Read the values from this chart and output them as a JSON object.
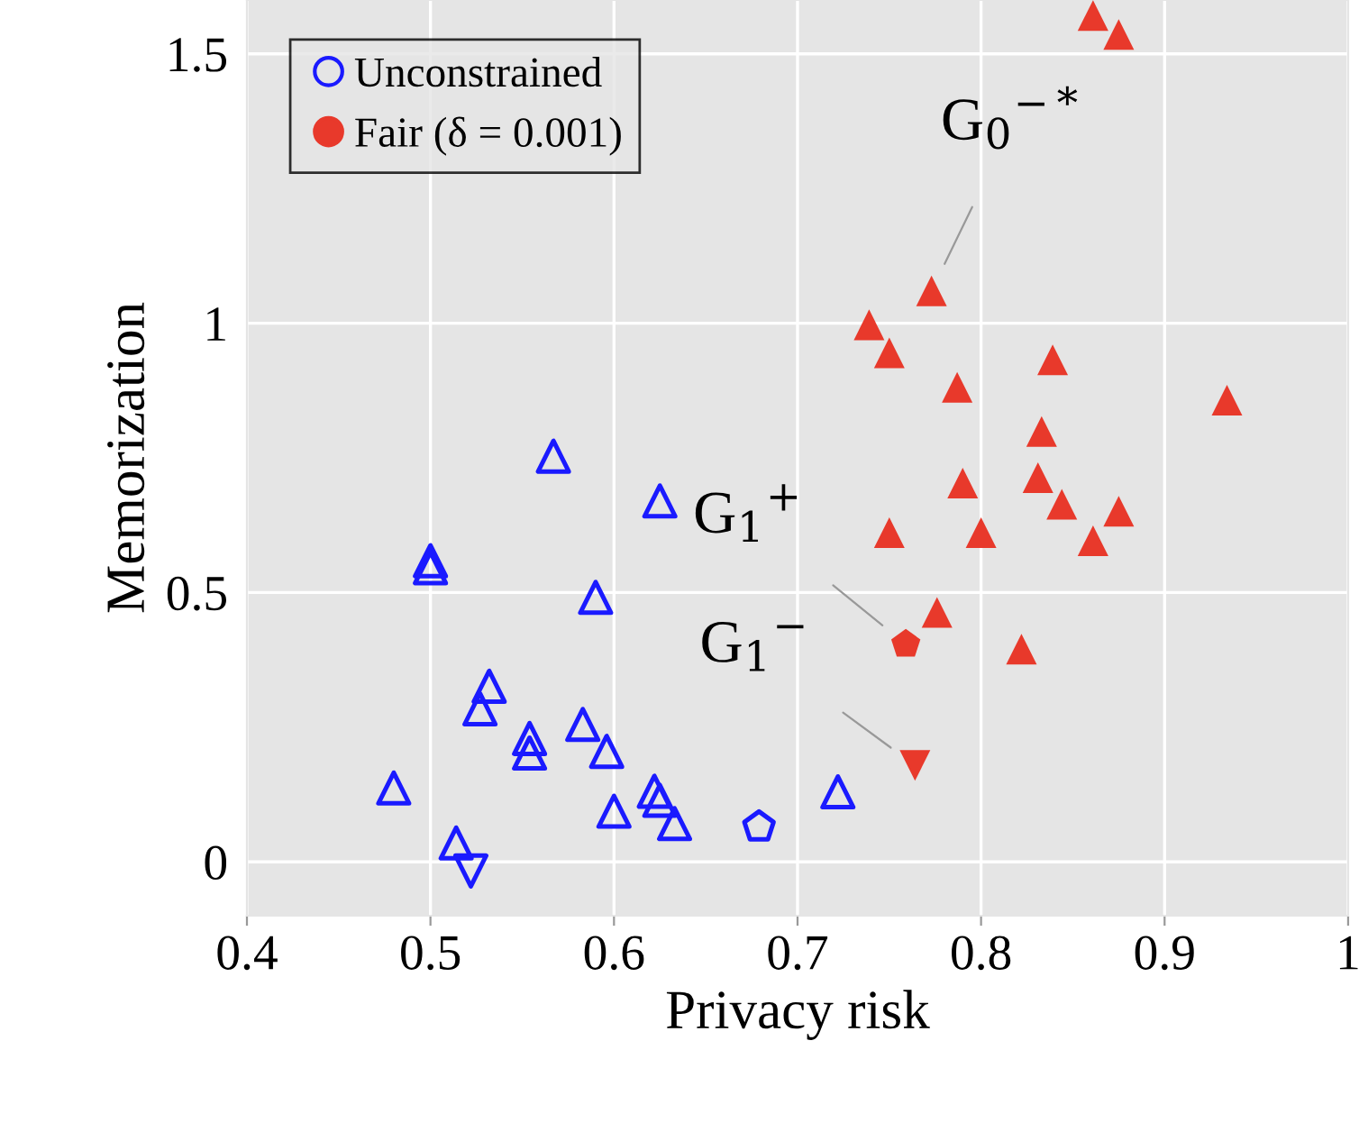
{
  "chart_data": {
    "type": "scatter",
    "xlabel": "Privacy risk",
    "ylabel": "Memorization",
    "xlim": [
      0.4,
      1.0
    ],
    "ylim": [
      -0.1,
      1.6
    ],
    "xticks": [
      0.4,
      0.5,
      0.6,
      0.7,
      0.8,
      0.9,
      1
    ],
    "yticks": [
      0,
      0.5,
      1,
      1.5
    ],
    "grid": true,
    "legend": "top left",
    "series": [
      {
        "name": "Unconstrained",
        "color": "#1a1aff",
        "marker": "triangle",
        "x": [
          0.567,
          0.625,
          0.5,
          0.5,
          0.59,
          0.532,
          0.527,
          0.554,
          0.554,
          0.583,
          0.596,
          0.48,
          0.514,
          0.622,
          0.625,
          0.6,
          0.633,
          0.722
        ],
        "values": [
          0.753,
          0.67,
          0.559,
          0.546,
          0.491,
          0.326,
          0.284,
          0.229,
          0.202,
          0.255,
          0.205,
          0.137,
          0.035,
          0.131,
          0.114,
          0.094,
          0.071,
          0.13
        ]
      },
      {
        "color": "#1a1aff",
        "x": [
          0.679
        ],
        "values": [
          0.065
        ]
      },
      {
        "color": "#1a1aff",
        "marker": "triangle_down",
        "x": [
          0.522
        ],
        "values": [
          -0.017
        ]
      },
      {
        "name": "Fair (δ = 0.001)",
        "color": "#e8392b",
        "marker": "triangle",
        "x": [
          0.861,
          0.875,
          0.773,
          0.739,
          0.75,
          0.839,
          0.787,
          0.934,
          0.833,
          0.79,
          0.831,
          0.844,
          0.875,
          0.75,
          0.8,
          0.861,
          0.776,
          0.822
        ],
        "values": [
          1.571,
          1.536,
          1.06,
          0.997,
          0.945,
          0.932,
          0.881,
          0.857,
          0.799,
          0.703,
          0.713,
          0.664,
          0.651,
          0.611,
          0.611,
          0.596,
          0.463,
          0.395
        ]
      },
      {
        "color": "#e8392b",
        "x": [
          0.759
        ],
        "values": [
          0.404
        ]
      },
      {
        "color": "#e8392b",
        "marker": "triangle_down",
        "x": [
          0.764
        ],
        "values": [
          0.179
        ]
      }
    ],
    "annotations": [
      {
        "text": "G$_{0}$$^{−*}$",
        "x": 0.773,
        "y": 1.06
      },
      {
        "text": "G$_{1}$$^{+}$",
        "x": 0.759,
        "y": 0.404
      },
      {
        "text": "G$_{1}$$^{−}$",
        "x": 0.764,
        "y": 0.179
      }
    ]
  }
}
